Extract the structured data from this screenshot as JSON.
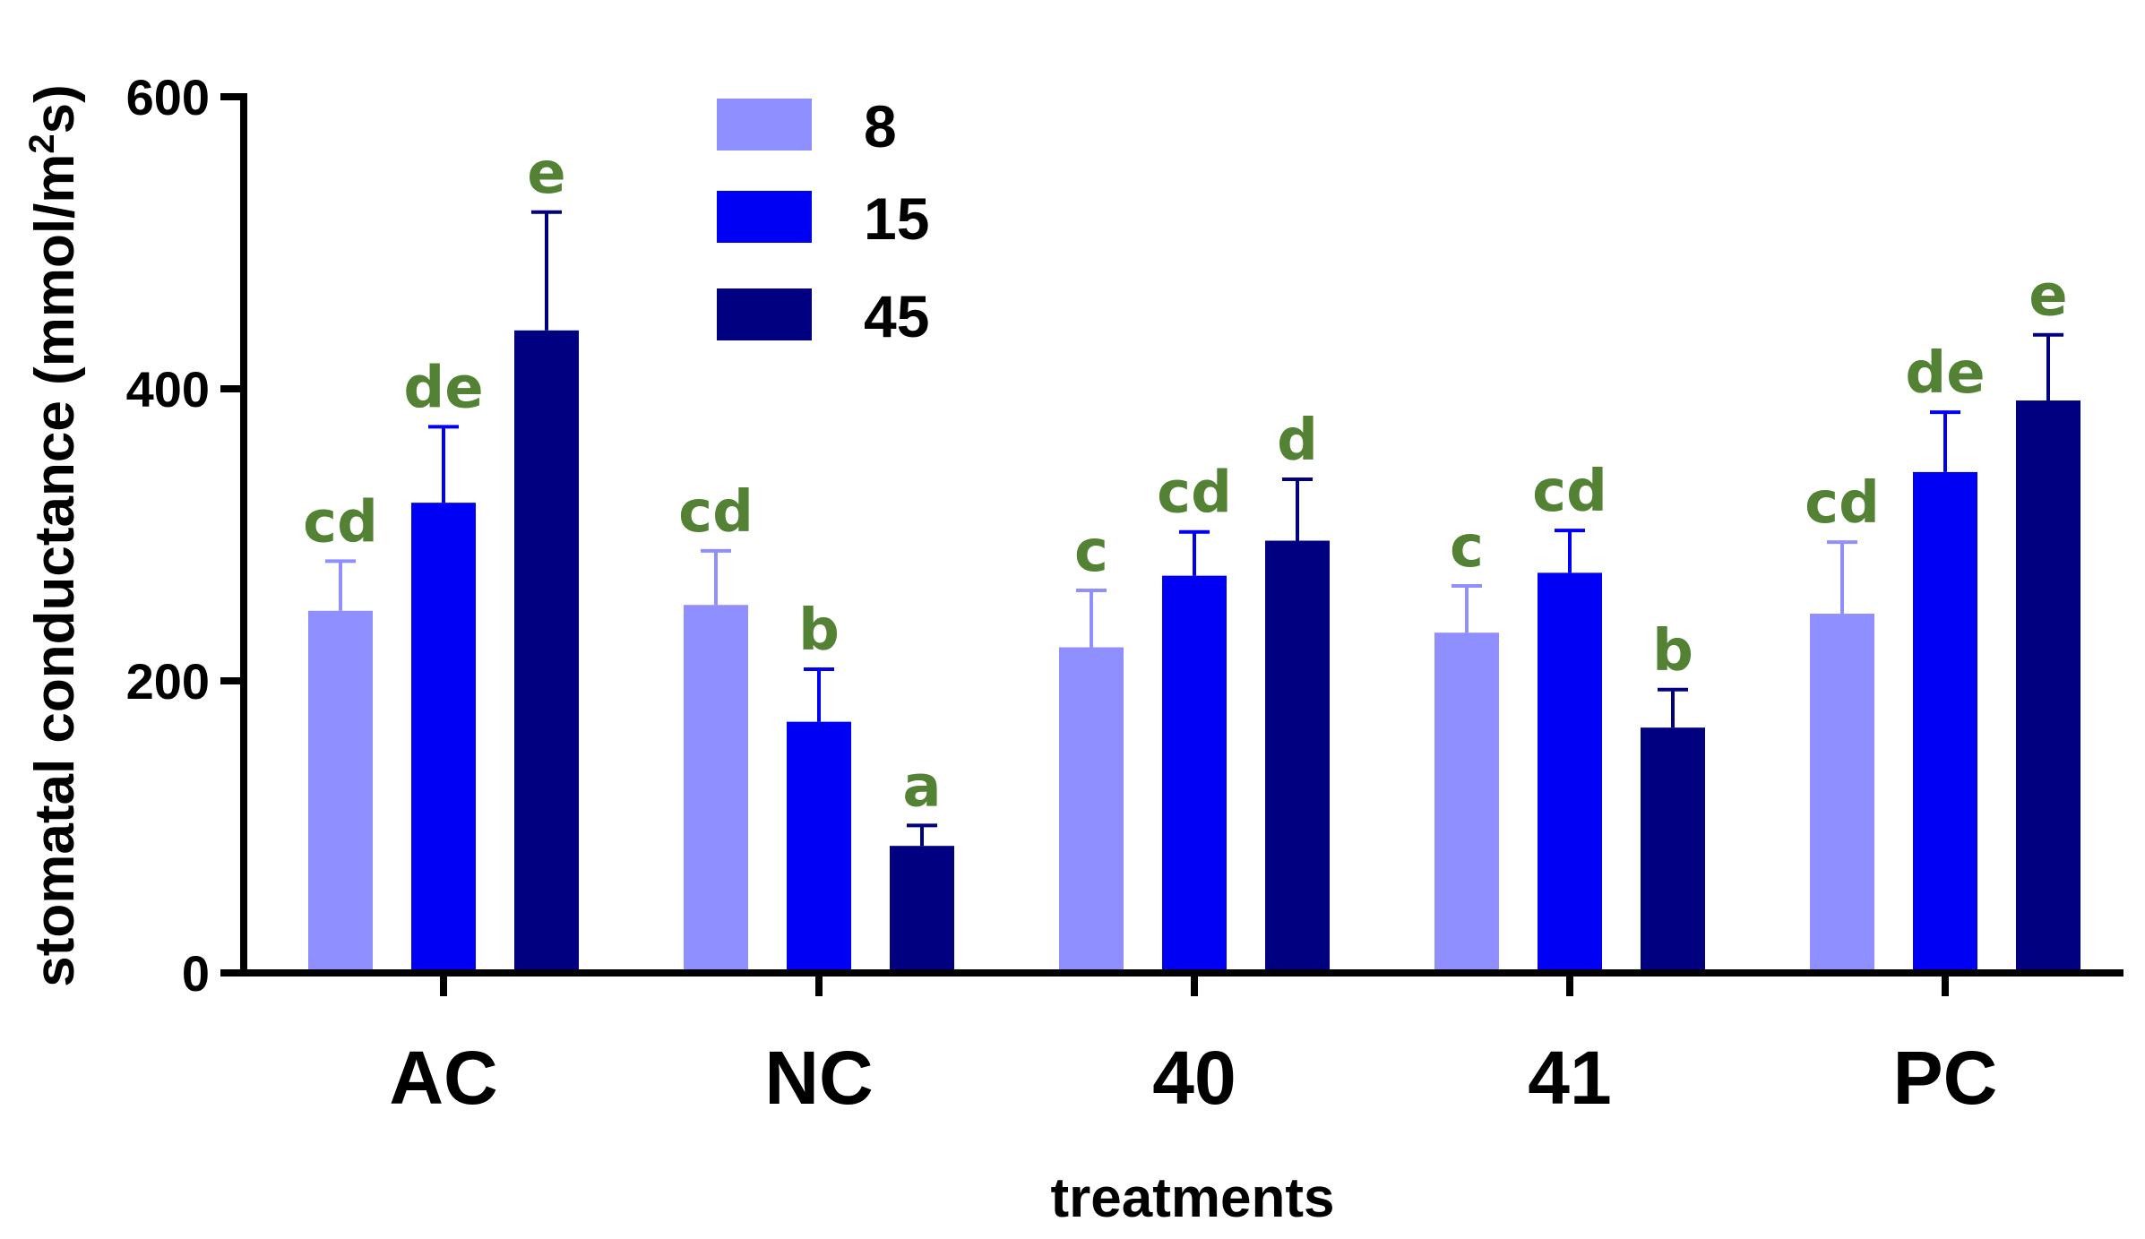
{
  "chart_data": {
    "type": "bar",
    "title": "",
    "xlabel": "treatments",
    "ylabel": {
      "prefix": "stomatal conductance (mmol/m",
      "superscript": "2",
      "suffix": "s)"
    },
    "ylim": [
      0,
      600
    ],
    "yticks": [
      0,
      200,
      400,
      600
    ],
    "grid": false,
    "legend_position": "top-center",
    "categories": [
      "AC",
      "NC",
      "40",
      "41",
      "PC"
    ],
    "series": [
      {
        "name": "8",
        "color": "#8F8FFF",
        "values": [
          248,
          252,
          223,
          233,
          246
        ],
        "errors": [
          34,
          37,
          39,
          32,
          49
        ],
        "letters": [
          "cd",
          "cd",
          "c",
          "c",
          "cd"
        ]
      },
      {
        "name": "15",
        "color": "#0000F5",
        "values": [
          322,
          172,
          272,
          274,
          343
        ],
        "errors": [
          52,
          36,
          30,
          29,
          41
        ],
        "letters": [
          "de",
          "b",
          "cd",
          "cd",
          "de"
        ]
      },
      {
        "name": "45",
        "color": "#000080",
        "values": [
          440,
          87,
          296,
          168,
          392
        ],
        "errors": [
          81,
          14,
          42,
          26,
          45
        ],
        "letters": [
          "e",
          "a",
          "d",
          "b",
          "e"
        ]
      }
    ]
  }
}
